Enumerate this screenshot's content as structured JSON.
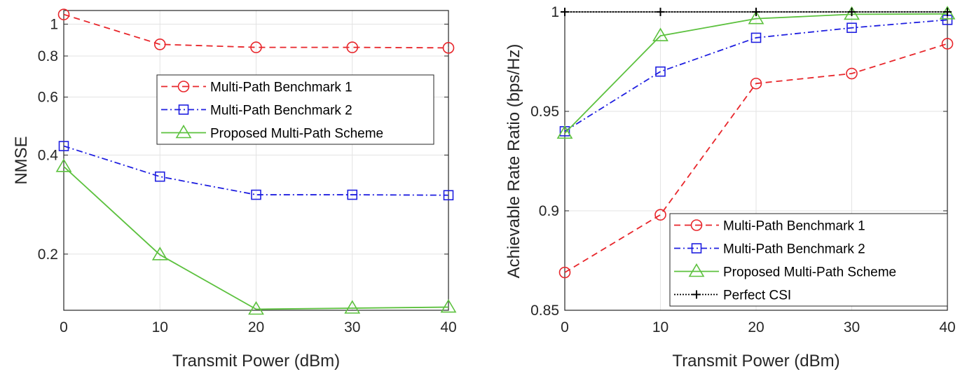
{
  "chart_data": [
    {
      "type": "line",
      "xlabel": "Transmit Power (dBm)",
      "ylabel": "NMSE",
      "yscale": "log",
      "xlim": [
        0,
        40
      ],
      "ylim": [
        0.135,
        1.1
      ],
      "xticks": [
        0,
        10,
        20,
        30,
        40
      ],
      "yticks": [
        0.2,
        0.4,
        0.6,
        0.8,
        1
      ],
      "ytick_labels": [
        "0.2",
        "0.4",
        "0.6",
        "0.8",
        "1"
      ],
      "grid": true,
      "legend_position": "upper-right",
      "x": [
        0,
        10,
        20,
        30,
        40
      ],
      "series": [
        {
          "name": "Multi-Path Benchmark 1",
          "values": [
            1.07,
            0.868,
            0.85,
            0.85,
            0.847
          ],
          "color": "#e8262b",
          "dash": "dashed",
          "marker": "circle"
        },
        {
          "name": "Multi-Path Benchmark 2",
          "values": [
            0.426,
            0.344,
            0.303,
            0.303,
            0.302
          ],
          "color": "#1f1fe0",
          "dash": "dashdot",
          "marker": "square"
        },
        {
          "name": "Proposed Multi-Path Scheme",
          "values": [
            0.369,
            0.199,
            0.136,
            0.137,
            0.138
          ],
          "color": "#5cc13e",
          "dash": "solid",
          "marker": "triangle"
        }
      ]
    },
    {
      "type": "line",
      "xlabel": "Transmit Power (dBm)",
      "ylabel": "Achievable Rate Ratio (bps/Hz)",
      "yscale": "linear",
      "xlim": [
        0,
        40
      ],
      "ylim": [
        0.85,
        1
      ],
      "xticks": [
        0,
        10,
        20,
        30,
        40
      ],
      "yticks": [
        0.85,
        0.9,
        0.95,
        1
      ],
      "ytick_labels": [
        "0.85",
        "0.9",
        "0.95",
        "1"
      ],
      "grid": true,
      "legend_position": "lower-right",
      "x": [
        0,
        10,
        20,
        30,
        40
      ],
      "series": [
        {
          "name": "Multi-Path Benchmark 1",
          "values": [
            0.869,
            0.898,
            0.964,
            0.969,
            0.984
          ],
          "color": "#e8262b",
          "dash": "dashed",
          "marker": "circle"
        },
        {
          "name": "Multi-Path Benchmark 2",
          "values": [
            0.94,
            0.97,
            0.987,
            0.992,
            0.996
          ],
          "color": "#1f1fe0",
          "dash": "dashdot",
          "marker": "square"
        },
        {
          "name": "Proposed Multi-Path Scheme",
          "values": [
            0.939,
            0.988,
            0.9966,
            0.9988,
            0.999
          ],
          "color": "#5cc13e",
          "dash": "solid",
          "marker": "triangle"
        },
        {
          "name": "Perfect CSI",
          "values": [
            1,
            1,
            1,
            1,
            1
          ],
          "color": "#000000",
          "dash": "dotted",
          "marker": "plus"
        }
      ]
    }
  ]
}
